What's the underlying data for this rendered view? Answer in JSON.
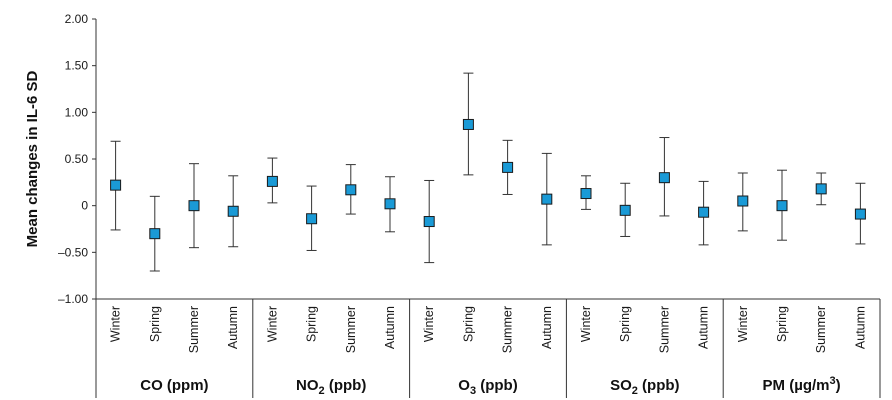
{
  "chart_data": {
    "type": "scatter",
    "ylabel": "Mean changes in IL-6 SD",
    "ylim": [
      -1.0,
      2.0
    ],
    "yticks": [
      -1.0,
      -0.5,
      0,
      0.5,
      1.0,
      1.5,
      2.0
    ],
    "ytick_labels": [
      "–1.00",
      "–0.50",
      "0",
      "0.50",
      "1.00",
      "1.50",
      "2.00"
    ],
    "grid": false,
    "marker_color": "#1a9ad6",
    "seasons": [
      "Winter",
      "Spring",
      "Summer",
      "Autumn"
    ],
    "groups": [
      {
        "label_main": "CO (ppm)",
        "label_sub": "",
        "label_sup": "",
        "label_after": "",
        "points": [
          {
            "season": "Winter",
            "mean": 0.22,
            "lower": -0.26,
            "upper": 0.69
          },
          {
            "season": "Spring",
            "mean": -0.3,
            "lower": -0.7,
            "upper": 0.1
          },
          {
            "season": "Summer",
            "mean": 0.0,
            "lower": -0.45,
            "upper": 0.45
          },
          {
            "season": "Autumn",
            "mean": -0.06,
            "lower": -0.44,
            "upper": 0.32
          }
        ]
      },
      {
        "label_main": "NO",
        "label_sub": "2",
        "label_sup": "",
        "label_after": " (ppb)",
        "points": [
          {
            "season": "Winter",
            "mean": 0.26,
            "lower": 0.03,
            "upper": 0.51
          },
          {
            "season": "Spring",
            "mean": -0.14,
            "lower": -0.48,
            "upper": 0.21
          },
          {
            "season": "Summer",
            "mean": 0.17,
            "lower": -0.09,
            "upper": 0.44
          },
          {
            "season": "Autumn",
            "mean": 0.02,
            "lower": -0.28,
            "upper": 0.31
          }
        ]
      },
      {
        "label_main": "O",
        "label_sub": "3",
        "label_sup": "",
        "label_after": " (ppb)",
        "points": [
          {
            "season": "Winter",
            "mean": -0.17,
            "lower": -0.61,
            "upper": 0.27
          },
          {
            "season": "Spring",
            "mean": 0.87,
            "lower": 0.33,
            "upper": 1.42
          },
          {
            "season": "Summer",
            "mean": 0.41,
            "lower": 0.12,
            "upper": 0.7
          },
          {
            "season": "Autumn",
            "mean": 0.07,
            "lower": -0.42,
            "upper": 0.56
          }
        ]
      },
      {
        "label_main": "SO",
        "label_sub": "2",
        "label_sup": "",
        "label_after": " (ppb)",
        "points": [
          {
            "season": "Winter",
            "mean": 0.13,
            "lower": -0.04,
            "upper": 0.32
          },
          {
            "season": "Spring",
            "mean": -0.05,
            "lower": -0.33,
            "upper": 0.24
          },
          {
            "season": "Summer",
            "mean": 0.3,
            "lower": -0.11,
            "upper": 0.73
          },
          {
            "season": "Autumn",
            "mean": -0.07,
            "lower": -0.42,
            "upper": 0.26
          }
        ]
      },
      {
        "label_main": "PM (µg/m",
        "label_sub": "",
        "label_sup": "3",
        "label_after": ")",
        "points": [
          {
            "season": "Winter",
            "mean": 0.05,
            "lower": -0.27,
            "upper": 0.35
          },
          {
            "season": "Spring",
            "mean": 0.0,
            "lower": -0.37,
            "upper": 0.38
          },
          {
            "season": "Summer",
            "mean": 0.18,
            "lower": 0.01,
            "upper": 0.35
          },
          {
            "season": "Autumn",
            "mean": -0.09,
            "lower": -0.41,
            "upper": 0.24
          }
        ]
      }
    ]
  }
}
